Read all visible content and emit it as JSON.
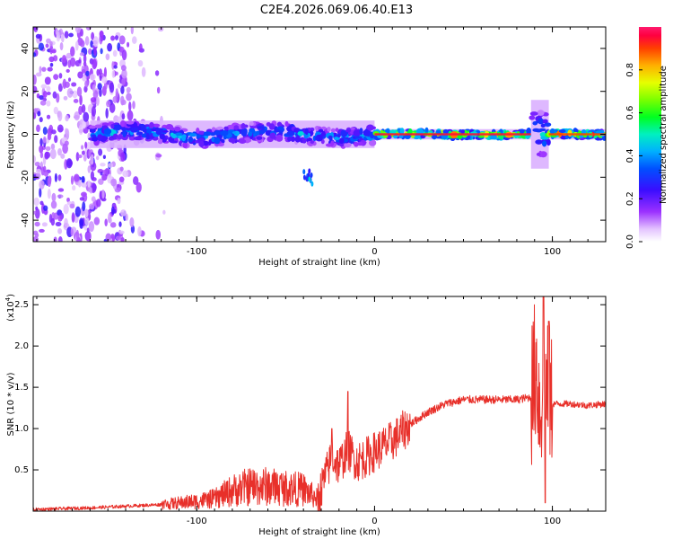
{
  "title": "C2E4.2026.069.06.40.E13",
  "chart_data": [
    {
      "type": "heatmap",
      "name": "spectrogram",
      "xlabel": "Height of straight line (km)",
      "ylabel": "Frequency (Hz)",
      "xlim": [
        -192,
        130
      ],
      "ylim": [
        -50,
        50
      ],
      "x_ticks": [
        -100,
        0,
        100
      ],
      "y_ticks": [
        -40,
        -20,
        0,
        20,
        40
      ],
      "colorbar": {
        "label": "Normalized spectral amplitude",
        "range": [
          0,
          1
        ],
        "ticks": [
          "0.0",
          "0.2",
          "0.4",
          "0.6",
          "0.8"
        ]
      },
      "features": [
        {
          "x_range": [
            -192,
            -140
          ],
          "description": "scattered noise across all frequencies",
          "amplitude": 0.15
        },
        {
          "x_range": [
            -160,
            0
          ],
          "freq_center": 0,
          "freq_spread": 4,
          "amplitude": 0.45
        },
        {
          "x_range": [
            0,
            88
          ],
          "freq_center": 0,
          "freq_spread": 1.5,
          "amplitude": 0.95
        },
        {
          "x_range": [
            88,
            98
          ],
          "freq_center": 0,
          "freq_spread": 10,
          "amplitude": 0.5
        },
        {
          "x_range": [
            98,
            130
          ],
          "freq_center": 0,
          "freq_spread": 1.5,
          "amplitude": 0.9
        },
        {
          "x_range": [
            -40,
            -35
          ],
          "freq_center": -20,
          "freq_spread": 2,
          "amplitude": 0.3
        }
      ]
    },
    {
      "type": "line",
      "name": "snr",
      "xlabel": "Height of straight line (km)",
      "ylabel": "SNR (10 * v/v)",
      "y_scale_label": "(x10",
      "y_scale_exponent": "4",
      "xlim": [
        -192,
        130
      ],
      "ylim": [
        0,
        2.6
      ],
      "x_ticks": [
        -100,
        0,
        100
      ],
      "y_ticks": [
        "0.5",
        "1.0",
        "1.5",
        "2.0",
        "2.5"
      ],
      "color": "#e8302a",
      "series": [
        {
          "name": "SNR",
          "x": [
            -192,
            -160,
            -140,
            -120,
            -100,
            -90,
            -80,
            -70,
            -60,
            -50,
            -40,
            -32,
            -28,
            -24,
            -20,
            -15,
            -10,
            -5,
            0,
            10,
            20,
            30,
            40,
            50,
            60,
            70,
            80,
            88,
            91,
            93,
            95,
            97,
            100,
            110,
            120,
            130
          ],
          "y": [
            0.02,
            0.04,
            0.06,
            0.08,
            0.12,
            0.15,
            0.25,
            0.3,
            0.3,
            0.28,
            0.26,
            0.15,
            0.4,
            0.65,
            0.55,
            0.75,
            0.6,
            0.65,
            0.72,
            0.85,
            1.05,
            1.2,
            1.3,
            1.35,
            1.35,
            1.35,
            1.35,
            1.38,
            1.8,
            1.2,
            1.6,
            1.4,
            1.3,
            1.3,
            1.28,
            1.3
          ]
        },
        {
          "name": "SNR spikes",
          "x": [
            -24,
            -15,
            95,
            96,
            98
          ],
          "y": [
            1.0,
            1.45,
            2.6,
            0.1,
            2.3
          ]
        }
      ]
    }
  ]
}
